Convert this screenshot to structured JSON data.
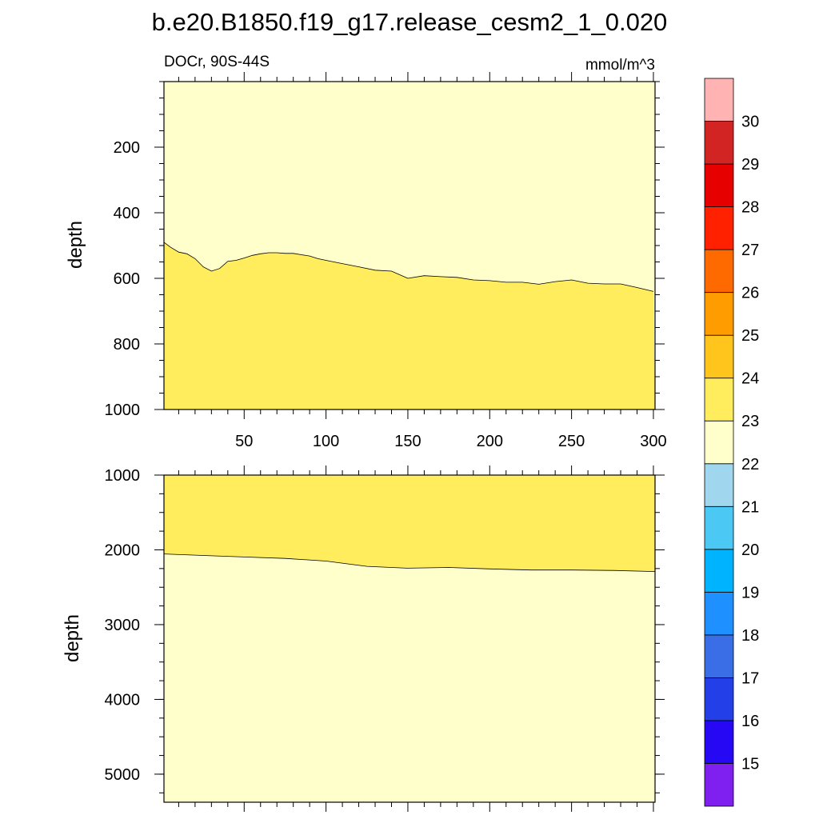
{
  "chart_data": {
    "type": "filled-contour",
    "title": "b.e20.B1850.f19_g17.release_cesm2_1_0.020",
    "left_subtitle": "DOCr, 90S-44S",
    "right_subtitle": "mmol/m^3",
    "xlim": [
      1,
      301
    ],
    "x_ticks": [
      50,
      100,
      150,
      200,
      250,
      300
    ],
    "colorbar": {
      "labels": [
        "15",
        "16",
        "17",
        "18",
        "19",
        "20",
        "21",
        "22",
        "23",
        "24",
        "25",
        "26",
        "27",
        "28",
        "29",
        "30"
      ],
      "colors": [
        "#7f1ff0",
        "#2608f5",
        "#2340e8",
        "#3a6ee6",
        "#1e90ff",
        "#00b3ff",
        "#4cc8f5",
        "#a0d6ee",
        "#ffffcc",
        "#ffed5e",
        "#ffc51c",
        "#ff9d00",
        "#ff6a00",
        "#ff2100",
        "#e60000",
        "#d32424",
        "#ffb3b3"
      ]
    },
    "panels": [
      {
        "name": "upper",
        "ylabel": "depth",
        "ylim": [
          0,
          1000
        ],
        "y_ticks": [
          200,
          400,
          600,
          800,
          1000
        ],
        "show_x_tick_labels": true,
        "regions": [
          {
            "level": "22-23",
            "color": "#ffffcc",
            "position": "above"
          },
          {
            "level": "23-24",
            "color": "#ffed5e",
            "position": "below"
          }
        ],
        "contour_23": {
          "x": [
            1,
            5,
            10,
            15,
            20,
            25,
            30,
            35,
            40,
            45,
            50,
            55,
            60,
            65,
            70,
            75,
            80,
            85,
            90,
            95,
            100,
            110,
            120,
            130,
            140,
            150,
            160,
            170,
            180,
            190,
            200,
            210,
            220,
            230,
            240,
            250,
            260,
            270,
            280,
            290,
            300
          ],
          "y": [
            490,
            505,
            520,
            525,
            540,
            565,
            578,
            570,
            548,
            545,
            538,
            530,
            525,
            522,
            522,
            524,
            524,
            528,
            532,
            540,
            545,
            555,
            565,
            575,
            578,
            600,
            592,
            595,
            597,
            605,
            607,
            612,
            612,
            618,
            610,
            605,
            615,
            617,
            617,
            628,
            640
          ]
        }
      },
      {
        "name": "lower",
        "ylabel": "depth",
        "ylim": [
          1000,
          5375
        ],
        "y_ticks": [
          1000,
          2000,
          3000,
          4000,
          5000
        ],
        "show_x_tick_labels": false,
        "regions": [
          {
            "level": "23-24",
            "color": "#ffed5e",
            "position": "above"
          },
          {
            "level": "22-23",
            "color": "#ffffcc",
            "position": "below"
          }
        ],
        "contour_23": {
          "x": [
            1,
            25,
            50,
            75,
            100,
            125,
            150,
            175,
            200,
            225,
            250,
            275,
            301
          ],
          "y": [
            2055,
            2075,
            2095,
            2115,
            2150,
            2220,
            2245,
            2235,
            2255,
            2270,
            2270,
            2275,
            2290
          ]
        }
      }
    ]
  }
}
